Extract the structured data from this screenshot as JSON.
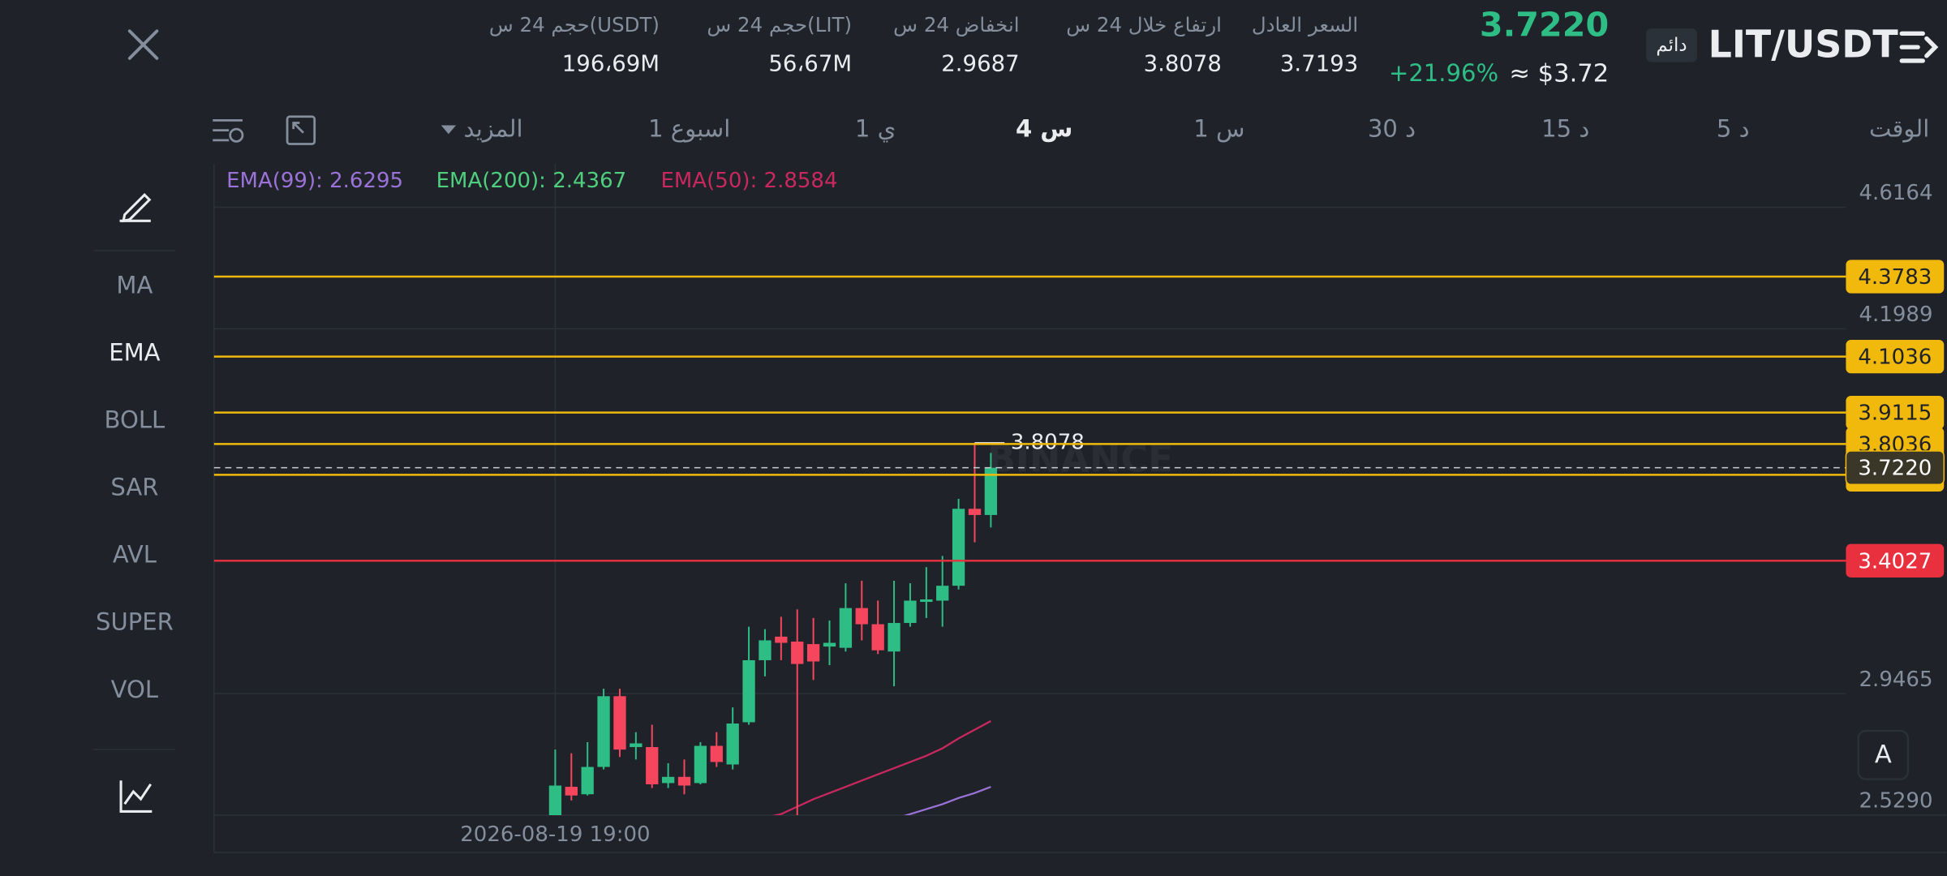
{
  "header": {
    "symbol": "LIT/USDT",
    "badge": "دائم",
    "last_price": "3.7220",
    "usd_price": "≈ $3.72",
    "change": "+21.96%",
    "stats": [
      {
        "label": "السعر العادل",
        "value": "3.7193"
      },
      {
        "label": "ارتفاع خلال 24 س",
        "value": "3.8078"
      },
      {
        "label": "انخفاض 24 س",
        "value": "2.9687"
      },
      {
        "label": "حجم 24 س(LIT)",
        "value": "56،67M"
      },
      {
        "label": "حجم 24 س(USDT)",
        "value": "196،69M"
      }
    ]
  },
  "toolbar": {
    "items": [
      "الوقت",
      "5 د",
      "15 د",
      "30 د",
      "1 س",
      "4 س",
      "1 ي",
      "1 اسبوع",
      "المزيد"
    ],
    "selected": 5
  },
  "sidebar": {
    "items": [
      "MA",
      "EMA",
      "BOLL",
      "SAR",
      "AVL",
      "SUPER",
      "VOL"
    ],
    "selected": 1
  },
  "chart": {
    "type": "candlestick",
    "watermark": "BINANCE",
    "up_color": "#2ebd85",
    "down_color": "#f6465d",
    "open": [
      2.5285,
      2.6265,
      2.6009,
      2.6947,
      2.9376,
      2.7629,
      2.7629,
      2.6393,
      2.6606,
      2.6393,
      2.7671,
      2.7032,
      2.8481,
      3.0611,
      3.1421,
      3.125,
      3.1165,
      3.108,
      3.1037,
      3.2401,
      3.1847,
      3.091,
      3.189,
      3.2614,
      3.2657,
      3.3168,
      3.581,
      3.5597
    ],
    "high": [
      2.7543,
      2.7416,
      2.7799,
      2.9631,
      2.9631,
      2.814,
      2.8396,
      2.7075,
      2.7203,
      2.7799,
      2.814,
      2.8992,
      3.1762,
      3.1677,
      3.2103,
      3.2358,
      3.206,
      3.1975,
      3.3253,
      3.3338,
      3.2657,
      3.3338,
      3.3253,
      3.3807,
      3.4191,
      3.6151,
      3.8078,
      3.7727
    ],
    "low": [
      2.5285,
      2.5796,
      2.5967,
      2.6862,
      2.7288,
      2.7203,
      2.6223,
      2.6223,
      2.6009,
      2.635,
      2.6947,
      2.6862,
      2.8396,
      3.0057,
      3.0611,
      2.5285,
      2.993,
      3.0441,
      3.091,
      3.1293,
      3.0824,
      2.9717,
      3.1762,
      3.206,
      3.1762,
      3.304,
      3.4659,
      3.5171
    ],
    "close": [
      2.6308,
      2.5967,
      2.6947,
      2.9376,
      2.7543,
      2.7756,
      2.635,
      2.6606,
      2.6308,
      2.7671,
      2.7117,
      2.8438,
      3.0611,
      3.1293,
      3.1208,
      3.0483,
      3.0569,
      3.1208,
      3.2401,
      3.1847,
      3.0952,
      3.189,
      3.2657,
      3.2699,
      3.3168,
      3.581,
      3.5597,
      3.722
    ],
    "series": [
      {
        "name": "EMA(99): 2.6295",
        "color": "#9b72d8",
        "values": [
          null,
          null,
          null,
          null,
          null,
          null,
          null,
          null,
          null,
          null,
          null,
          null,
          null,
          null,
          null,
          null,
          null,
          null,
          null,
          null,
          null,
          2.5157,
          2.5328,
          2.5498,
          2.5668,
          2.5881,
          2.6052,
          2.6265
        ]
      },
      {
        "name": "EMA(200): 2.4367",
        "color": "#4fcf7e",
        "values": [
          null,
          null,
          null,
          null,
          null,
          null,
          null,
          null,
          null,
          null,
          null,
          null,
          null,
          null,
          null,
          null,
          null,
          null,
          null,
          null,
          null,
          null,
          null,
          null,
          null,
          null,
          null,
          null
        ]
      },
      {
        "name": "EMA(50): 2.8584",
        "color": "#c9285f",
        "values": [
          null,
          null,
          null,
          null,
          null,
          null,
          null,
          null,
          null,
          null,
          null,
          null,
          null,
          2.52,
          2.5328,
          2.5583,
          2.5839,
          2.6052,
          2.6265,
          2.6478,
          2.6691,
          2.6904,
          2.7117,
          2.733,
          2.7586,
          2.7927,
          2.8225,
          2.8523
        ]
      }
    ],
    "high_marker_index": 26,
    "price_lines": [
      {
        "value": 3.8036,
        "color": "#f0b90b"
      },
      {
        "value": 3.6976,
        "color": "#f0b90b"
      },
      {
        "value": 4.3783,
        "color": "#f0b90b"
      },
      {
        "value": 4.1036,
        "color": "#f0b90b"
      },
      {
        "value": 3.9115,
        "color": "#f0b90b"
      },
      {
        "value": 3.4027,
        "color": "#e8303f"
      },
      {
        "value": 3.722,
        "label": "3.7220",
        "color": "#3a3628",
        "dashed": true
      }
    ],
    "xlim": [
      -21.15,
      80
    ],
    "xticks": [
      {
        "value": 0,
        "label": "2026-08-19 19:00"
      }
    ],
    "ylim": [
      2.529,
      4.7655
    ],
    "yticks": [
      4.6164,
      4.1989,
      2.9465,
      {
        "value": 2.529,
        "label": "2.5290"
      }
    ],
    "grid": true
  }
}
